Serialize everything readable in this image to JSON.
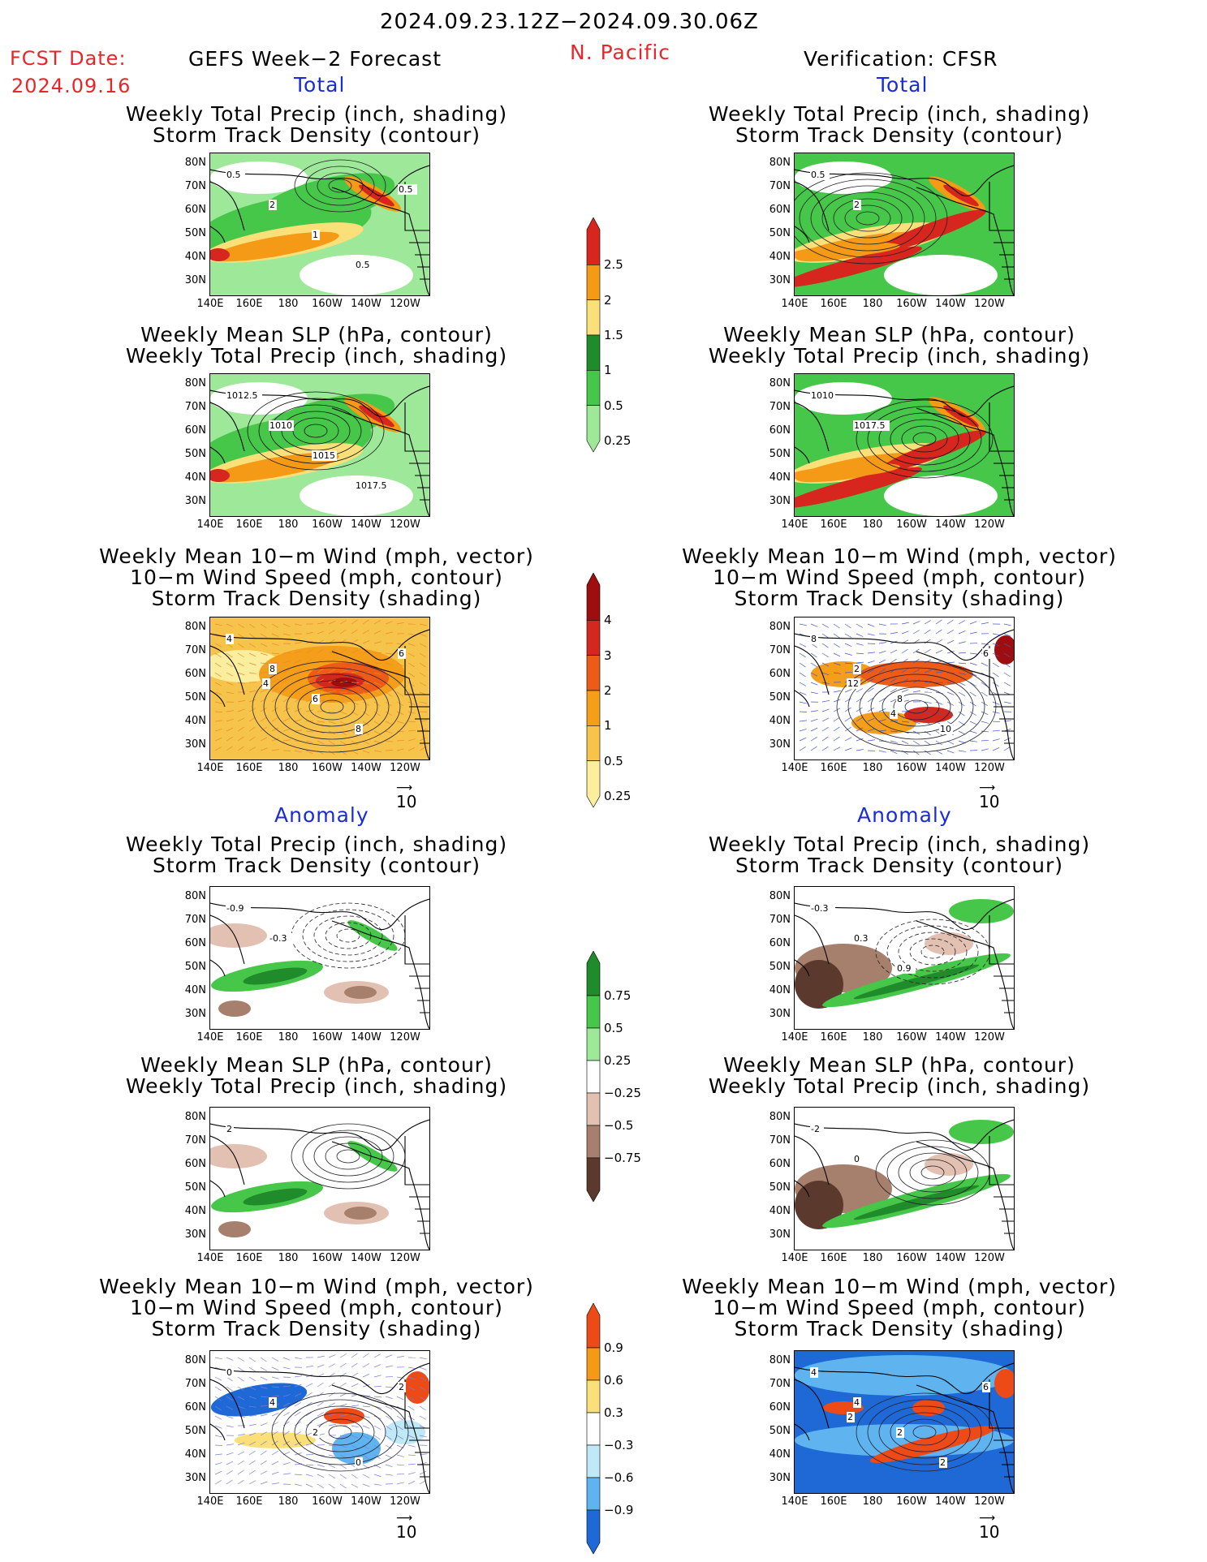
{
  "header": {
    "date_range": "2024.09.23.12Z−2024.09.30.06Z",
    "fcst_label": "FCST Date:",
    "fcst_date": "2024.09.16",
    "model": "GEFS Week−2 Forecast",
    "region": "N. Pacific",
    "verification": "Verification: CFSR"
  },
  "sections": {
    "total": "Total",
    "anomaly": "Anomaly"
  },
  "titles": {
    "precip_track": "Weekly Total Precip (inch, shading)\nStorm Track Density (contour)",
    "slp_precip": "Weekly Mean SLP (hPa, contour)\nWeekly Total Precip (inch, shading)",
    "wind": "Weekly Mean 10−m Wind (mph, vector)\n10−m Wind Speed (mph, contour)\nStorm Track Density (shading)"
  },
  "axes": {
    "lat": [
      "80N",
      "70N",
      "60N",
      "50N",
      "40N",
      "30N"
    ],
    "lon": [
      "140E",
      "160E",
      "180",
      "160W",
      "140W",
      "120W"
    ]
  },
  "vector_ref": "10",
  "colorbars": {
    "precip_total": {
      "labels": [
        "2.5",
        "2",
        "1.5",
        "1",
        "0.5",
        "0.25"
      ],
      "colors": [
        "#d7261e",
        "#f49a16",
        "#fbe07a",
        "#1f8b2a",
        "#46c74a",
        "#9ee89a"
      ]
    },
    "track_total": {
      "labels": [
        "4",
        "3",
        "2",
        "1",
        "0.5",
        "0.25"
      ],
      "colors": [
        "#9e0e0e",
        "#d2281d",
        "#ec5b17",
        "#f49e1a",
        "#f6c44a",
        "#fbee9f"
      ]
    },
    "precip_anom": {
      "labels": [
        "0.75",
        "0.5",
        "0.25",
        "−0.25",
        "−0.5",
        "−0.75"
      ],
      "colors": [
        "#1f8b2a",
        "#46c74a",
        "#9ee89a",
        "#ffffff",
        "#e2c1b3",
        "#a67f6d",
        "#5b3a2d"
      ]
    },
    "track_anom": {
      "labels": [
        "0.9",
        "0.6",
        "0.3",
        "−0.3",
        "−0.6",
        "−0.9"
      ],
      "colors": [
        "#ec4a17",
        "#f49a16",
        "#fbe07a",
        "#ffffff",
        "#bfe9f7",
        "#5fb4ef",
        "#1e69d6"
      ]
    }
  },
  "contour_labels": {
    "p1": [
      "0.5",
      "2",
      "1",
      "0.5",
      "0.5"
    ],
    "s1": [
      "1012.5",
      "1010",
      "1015",
      "1017.5"
    ],
    "w1": [
      "4",
      "8",
      "6",
      "8",
      "6",
      "4"
    ],
    "p2": [
      "0.5",
      "2"
    ],
    "s2": [
      "1010",
      "1017.5"
    ],
    "w2": [
      "8",
      "2",
      "8",
      "10",
      "6",
      "12",
      "4"
    ],
    "pa1": [
      "-0.9",
      "-0.3"
    ],
    "sa1": [
      "2"
    ],
    "wa1": [
      "0",
      "4",
      "2",
      "0",
      "2"
    ],
    "pa2": [
      "-0.3",
      "0.3",
      "0.9"
    ],
    "sa2": [
      "-2",
      "0"
    ],
    "wa2": [
      "4",
      "4",
      "2",
      "2",
      "6",
      "2"
    ]
  }
}
